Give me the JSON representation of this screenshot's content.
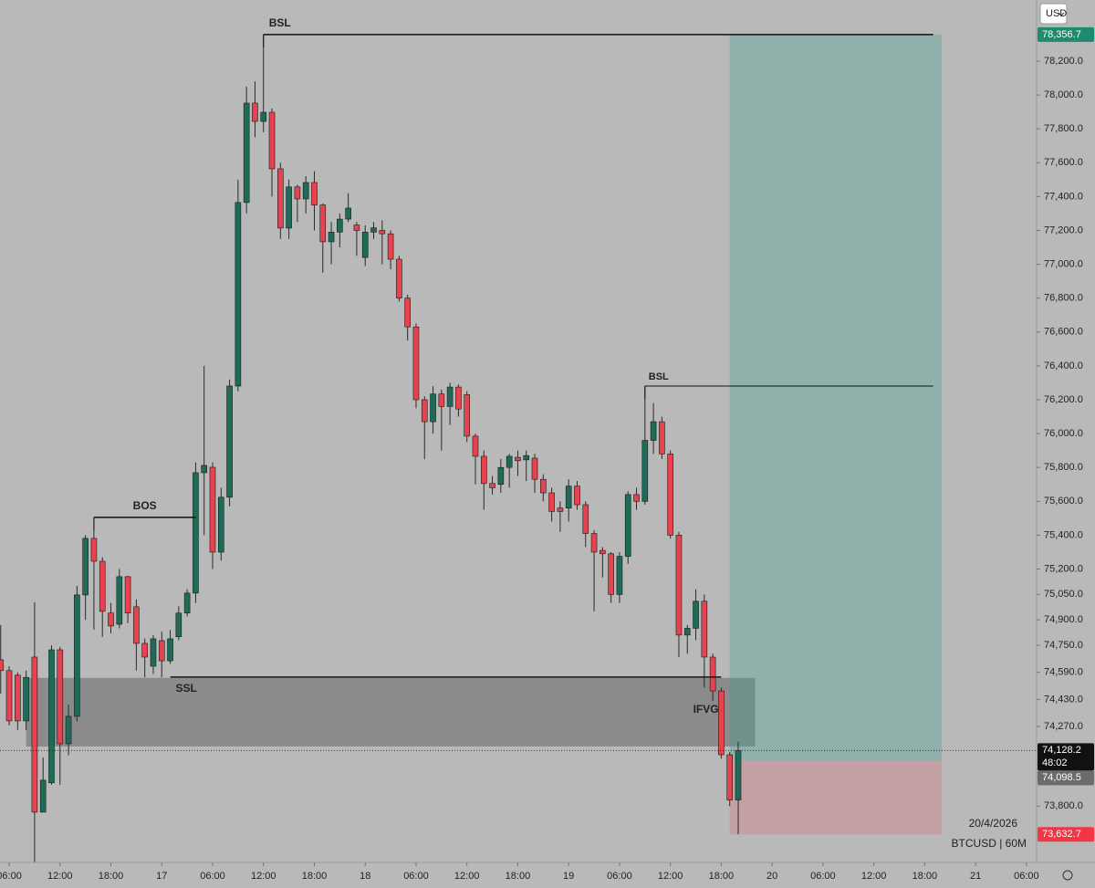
{
  "chart_data": {
    "type": "candlestick",
    "currency": "USD",
    "x": [
      5,
      6,
      7,
      8,
      9,
      10,
      11,
      12,
      13,
      14,
      15,
      16,
      17,
      18,
      19,
      20,
      21,
      22,
      23,
      24,
      25,
      26,
      27,
      28,
      29,
      30,
      31,
      32,
      33,
      34,
      35,
      36,
      37,
      38,
      39,
      40,
      41,
      42,
      43,
      44,
      45,
      46,
      47,
      48,
      49,
      50,
      51,
      52,
      53,
      54,
      55,
      56,
      57,
      58,
      59,
      60,
      61,
      62,
      63,
      64,
      65,
      66,
      67,
      68,
      69,
      70,
      71,
      72,
      73,
      74,
      75,
      76,
      77,
      78,
      79,
      80,
      81,
      82,
      83,
      84,
      85,
      86,
      87,
      88,
      89,
      90,
      91,
      92
    ],
    "open": [
      74664,
      74600,
      74573,
      74303,
      74680,
      73764,
      73937,
      74723,
      74168,
      74330,
      75047,
      75381,
      75246,
      74940,
      74874,
      75155,
      74977,
      74761,
      74626,
      74777,
      74658,
      74800,
      74940,
      75058,
      75769,
      75801,
      75300,
      75624,
      76281,
      77365,
      77952,
      77844,
      77898,
      77564,
      77214,
      77457,
      77386,
      77483,
      77350,
      77133,
      77190,
      77267,
      77232,
      77040,
      77190,
      77200,
      77180,
      77030,
      76800,
      76630,
      76200,
      76070,
      76234,
      76160,
      76275,
      76230,
      75985,
      75866,
      75705,
      75700,
      75800,
      75860,
      75845,
      75855,
      75730,
      75650,
      75560,
      75560,
      75690,
      75580,
      75410,
      75310,
      75290,
      75050,
      75275,
      75640,
      75600,
      75960,
      76070,
      75880,
      75400,
      74810,
      74850,
      75010,
      74680,
      74480,
      74103,
      73836
    ],
    "high": [
      74869,
      74626,
      74590,
      74600,
      75004,
      74088,
      74750,
      74740,
      74400,
      75100,
      75400,
      75500,
      75270,
      75000,
      75200,
      75160,
      75020,
      74790,
      74810,
      74830,
      74840,
      74980,
      75080,
      75830,
      76400,
      75830,
      75680,
      76320,
      77500,
      78050,
      78080,
      78356.7,
      77920,
      77600,
      77500,
      77470,
      77520,
      77550,
      77360,
      77250,
      77300,
      77420,
      77250,
      77230,
      77250,
      77260,
      77200,
      77050,
      76820,
      76650,
      76220,
      76280,
      76260,
      76300,
      76290,
      76250,
      76000,
      75900,
      75750,
      75850,
      75880,
      75900,
      75900,
      75880,
      75760,
      75680,
      75600,
      75730,
      75720,
      75600,
      75430,
      75330,
      75300,
      75300,
      75660,
      75680,
      76281,
      76180,
      76100,
      75900,
      75420,
      74870,
      75080,
      75050,
      74700,
      74500,
      74120,
      74180
    ],
    "low": [
      74465,
      74276,
      74250,
      74250,
      73467,
      73764,
      73926,
      73926,
      74100,
      74300,
      74900,
      74842,
      74800,
      74820,
      74850,
      74880,
      74600,
      74560,
      74580,
      74560,
      74640,
      74780,
      74920,
      75000,
      75400,
      75200,
      75250,
      75570,
      76250,
      77300,
      77750,
      77780,
      77400,
      77150,
      77150,
      77250,
      77300,
      77200,
      76950,
      77000,
      77100,
      77250,
      77050,
      76990,
      77150,
      77000,
      76970,
      76780,
      76550,
      76150,
      75850,
      76000,
      75900,
      76050,
      76100,
      75950,
      75700,
      75550,
      75640,
      75650,
      75680,
      75750,
      75720,
      75650,
      75600,
      75480,
      75420,
      75480,
      75550,
      75330,
      74950,
      75150,
      75000,
      75000,
      75230,
      75550,
      75580,
      75880,
      75850,
      75380,
      74680,
      74700,
      74780,
      74500,
      74420,
      74080,
      73800,
      73632.7
    ],
    "close": [
      74600,
      74303,
      74303,
      74560,
      73764,
      73953,
      74723,
      74168,
      74330,
      75047,
      75381,
      75246,
      74950,
      74864,
      75155,
      74940,
      74761,
      74680,
      74788,
      74658,
      74788,
      74940,
      75058,
      75769,
      75812,
      75300,
      75624,
      76281,
      77365,
      77952,
      77844,
      77898,
      77564,
      77214,
      77457,
      77386,
      77483,
      77350,
      77133,
      77190,
      77267,
      77332,
      77200,
      77190,
      77215,
      77180,
      77030,
      76800,
      76630,
      76200,
      76070,
      76234,
      76160,
      76275,
      76145,
      75985,
      75866,
      75705,
      75680,
      75800,
      75866,
      75840,
      75870,
      75730,
      75650,
      75540,
      75540,
      75690,
      75580,
      75410,
      75300,
      75290,
      75050,
      75275,
      75640,
      75600,
      75960,
      76070,
      75880,
      75400,
      74810,
      74850,
      75010,
      74680,
      74480,
      74103,
      73836,
      74128.2
    ],
    "up_color": "#1f6b58",
    "down_color": "#e8424f",
    "xlim": [
      4.92,
      127.2
    ],
    "xticks": [
      {
        "value": 6,
        "label": "06:00"
      },
      {
        "value": 12,
        "label": "12:00"
      },
      {
        "value": 18,
        "label": "18:00"
      },
      {
        "value": 24,
        "label": "17"
      },
      {
        "value": 30,
        "label": "06:00"
      },
      {
        "value": 36,
        "label": "12:00"
      },
      {
        "value": 42,
        "label": "18:00"
      },
      {
        "value": 48,
        "label": "18"
      },
      {
        "value": 54,
        "label": "06:00"
      },
      {
        "value": 60,
        "label": "12:00"
      },
      {
        "value": 66,
        "label": "18:00"
      },
      {
        "value": 72,
        "label": "19"
      },
      {
        "value": 78,
        "label": "06:00"
      },
      {
        "value": 84,
        "label": "12:00"
      },
      {
        "value": 90,
        "label": "18:00"
      },
      {
        "value": 96,
        "label": "20"
      },
      {
        "value": 102,
        "label": "06:00"
      },
      {
        "value": 108,
        "label": "12:00"
      },
      {
        "value": 114,
        "label": "18:00"
      },
      {
        "value": 120,
        "label": "21"
      },
      {
        "value": 126,
        "label": "06:00"
      }
    ],
    "ylim": [
      73467,
      78561
    ],
    "yticks": [
      {
        "value": 78200,
        "label": "78,200.0"
      },
      {
        "value": 78000,
        "label": "78,000.0"
      },
      {
        "value": 77800,
        "label": "77,800.0"
      },
      {
        "value": 77600,
        "label": "77,600.0"
      },
      {
        "value": 77400,
        "label": "77,400.0"
      },
      {
        "value": 77200,
        "label": "77,200.0"
      },
      {
        "value": 77000,
        "label": "77,000.0"
      },
      {
        "value": 76800,
        "label": "76,800.0"
      },
      {
        "value": 76600,
        "label": "76,600.0"
      },
      {
        "value": 76400,
        "label": "76,400.0"
      },
      {
        "value": 76200,
        "label": "76,200.0"
      },
      {
        "value": 76000,
        "label": "76,000.0"
      },
      {
        "value": 75800,
        "label": "75,800.0"
      },
      {
        "value": 75600,
        "label": "75,600.0"
      },
      {
        "value": 75400,
        "label": "75,400.0"
      },
      {
        "value": 75200,
        "label": "75,200.0"
      },
      {
        "value": 75050,
        "label": "75,050.0"
      },
      {
        "value": 74900,
        "label": "74,900.0"
      },
      {
        "value": 74750,
        "label": "74,750.0"
      },
      {
        "value": 74590,
        "label": "74,590.0"
      },
      {
        "value": 74430,
        "label": "74,430.0"
      },
      {
        "value": 74270,
        "label": "74,270.0"
      },
      {
        "value": 73800,
        "label": "73,800.0"
      }
    ],
    "levels": [
      {
        "label": "BSL",
        "value": 78356.7,
        "x": [
          36,
          115
        ]
      },
      {
        "label": "BOS",
        "value": 75505,
        "x": [
          16,
          28
        ]
      },
      {
        "label": "SSL",
        "value": 74562,
        "x": [
          25,
          90
        ]
      },
      {
        "label": "BSL",
        "value": 76281,
        "x": [
          81,
          115
        ]
      }
    ],
    "zones": [
      {
        "label": "IFVG",
        "range": [
          74152,
          74557
        ],
        "x": [
          8,
          94
        ]
      }
    ],
    "position": {
      "target": 78356.7,
      "entry": 74065,
      "stop": 73632.7,
      "x": [
        91,
        116
      ]
    },
    "current_price": 74128.2,
    "price_tags": [
      {
        "value": 78356.7,
        "label": "78,356.7",
        "color": "#1e8a6e"
      },
      {
        "value": 74128.2,
        "label": "74,128.2",
        "countdown": "48:02",
        "color": "#111111"
      },
      {
        "value": 74098.5,
        "label": "74,098.5",
        "color": "#6b6b6b"
      },
      {
        "value": 73632.7,
        "label": "73,632.7",
        "color": "#f23645"
      }
    ],
    "date": "20/4/2026",
    "symbol": "BTCUSD | 60M"
  }
}
